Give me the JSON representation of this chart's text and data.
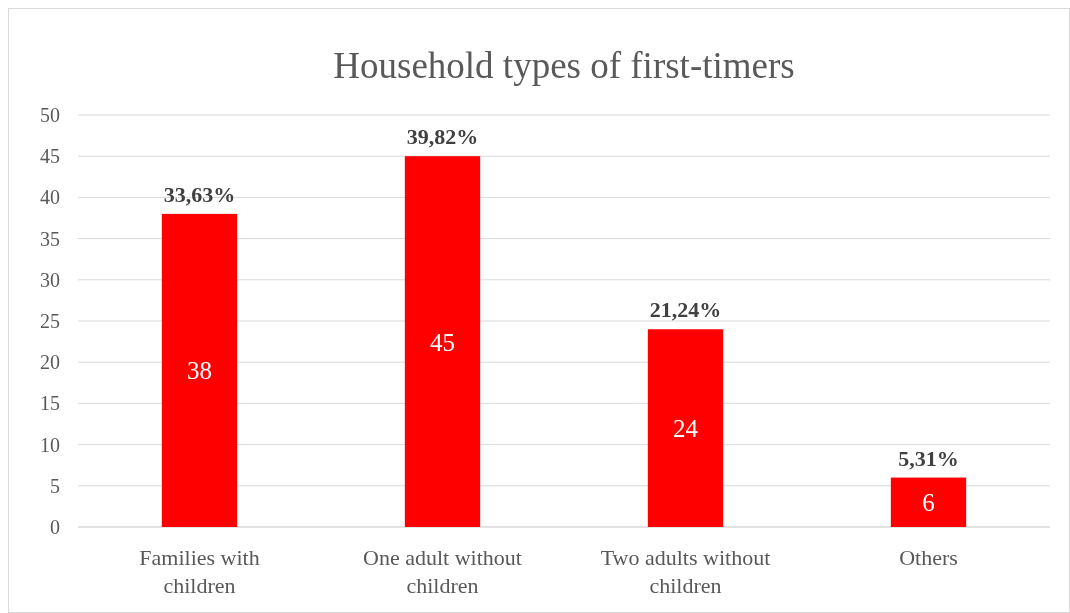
{
  "chart_data": {
    "type": "bar",
    "title": "Household types of first-timers",
    "categories": [
      "Families with children",
      "One adult without children",
      "Two adults without children",
      "Others"
    ],
    "values": [
      38,
      45,
      24,
      6
    ],
    "color": "#ff0000",
    "data_labels": true,
    "annotations": [
      {
        "text": "33,63%",
        "x": "Families with children",
        "y": 38
      },
      {
        "text": "39,82%",
        "x": "One adult without children",
        "y": 45
      },
      {
        "text": "21,24%",
        "x": "Two adults without children",
        "y": 24
      },
      {
        "text": "5,31%",
        "x": "Others",
        "y": 6
      }
    ],
    "ylim": [
      0,
      50
    ],
    "yticks": [
      0,
      5,
      10,
      15,
      20,
      25,
      30,
      35,
      40,
      45,
      50
    ],
    "grid": "y"
  }
}
